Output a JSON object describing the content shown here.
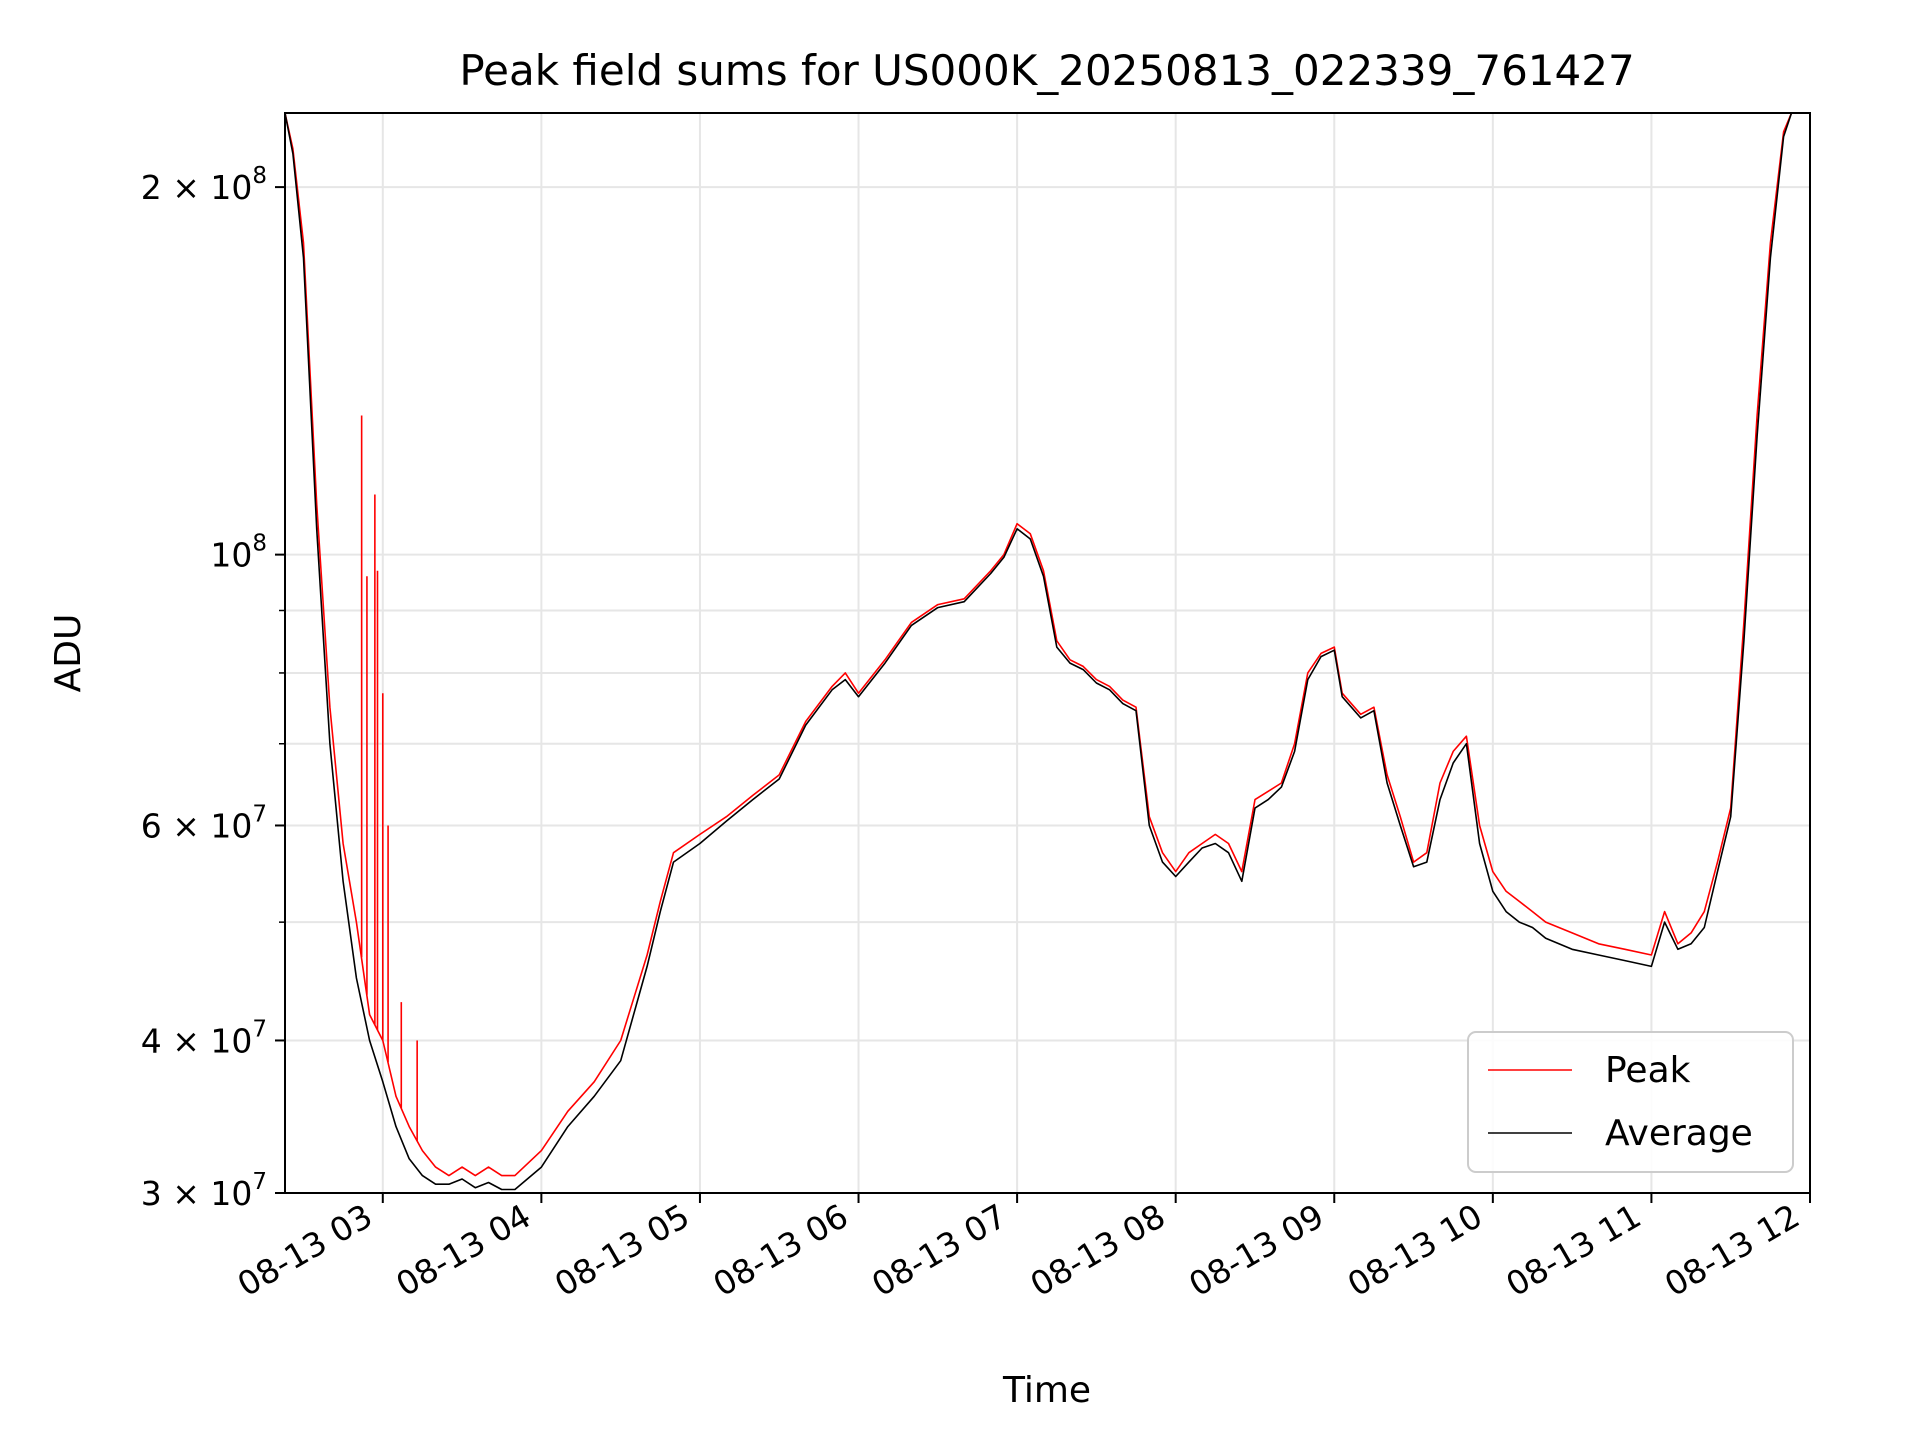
{
  "chart_data": {
    "type": "line",
    "title": "Peak field sums for US000K_20250813_022339_761427",
    "xlabel": "Time",
    "ylabel": "ADU",
    "y_scale": "log",
    "xlim": [
      "2025-08-13 02:23",
      "2025-08-13 12:00"
    ],
    "ylim": [
      30000000,
      230000000
    ],
    "grid": true,
    "legend_position": "lower-right",
    "x_ticks": [
      "08-13 03",
      "08-13 04",
      "08-13 05",
      "08-13 06",
      "08-13 07",
      "08-13 08",
      "08-13 09",
      "08-13 10",
      "08-13 11",
      "08-13 12"
    ],
    "y_ticks": [
      {
        "value": 30000000,
        "mant": "3",
        "exp": "7"
      },
      {
        "value": 40000000,
        "mant": "4",
        "exp": "7"
      },
      {
        "value": 60000000,
        "mant": "6",
        "exp": "7"
      },
      {
        "value": 100000000,
        "mant": "",
        "exp": "8"
      },
      {
        "value": 200000000,
        "mant": "2",
        "exp": "8"
      }
    ],
    "y_minor_ticks": [
      50000000,
      70000000,
      80000000,
      90000000
    ],
    "series": [
      {
        "name": "Peak",
        "color": "#ff0000",
        "x": [
          "02:23",
          "02:26",
          "02:30",
          "02:35",
          "02:40",
          "02:45",
          "02:50",
          "02:55",
          "03:00",
          "03:05",
          "03:10",
          "03:15",
          "03:20",
          "03:25",
          "03:30",
          "03:35",
          "03:40",
          "03:45",
          "03:50",
          "04:00",
          "04:10",
          "04:20",
          "04:30",
          "04:40",
          "04:45",
          "04:50",
          "05:00",
          "05:10",
          "05:20",
          "05:30",
          "05:40",
          "05:50",
          "05:55",
          "06:00",
          "06:10",
          "06:20",
          "06:30",
          "06:40",
          "06:50",
          "06:55",
          "07:00",
          "07:05",
          "07:10",
          "07:15",
          "07:20",
          "07:25",
          "07:30",
          "07:35",
          "07:40",
          "07:45",
          "07:50",
          "07:55",
          "08:00",
          "08:05",
          "08:10",
          "08:15",
          "08:20",
          "08:25",
          "08:30",
          "08:35",
          "08:40",
          "08:45",
          "08:50",
          "08:55",
          "09:00",
          "09:03",
          "09:10",
          "09:15",
          "09:20",
          "09:25",
          "09:30",
          "09:35",
          "09:40",
          "09:45",
          "09:50",
          "09:55",
          "10:00",
          "10:05",
          "10:10",
          "10:15",
          "10:20",
          "10:30",
          "10:40",
          "10:50",
          "11:00",
          "11:05",
          "11:10",
          "11:15",
          "11:20",
          "11:25",
          "11:30",
          "11:35",
          "11:40",
          "11:45",
          "11:50",
          "11:53"
        ],
        "y": [
          230,
          215,
          180,
          110,
          75,
          58,
          50,
          42,
          40,
          36,
          34,
          32.5,
          31.5,
          31,
          31.5,
          31,
          31.5,
          31,
          31,
          32.5,
          35,
          37,
          40,
          47,
          52,
          57,
          59,
          61,
          63.5,
          66,
          73,
          78,
          80,
          77,
          82,
          88,
          91,
          92,
          97,
          100,
          106,
          104,
          97,
          85,
          82,
          81,
          79,
          78,
          76,
          75,
          61,
          57,
          55,
          57,
          58,
          59,
          58,
          55,
          63,
          64,
          65,
          70,
          80,
          83,
          84,
          77,
          74,
          75,
          66,
          61,
          56,
          57,
          65,
          69,
          71,
          60,
          55,
          53,
          52,
          51,
          50,
          49,
          48,
          47.5,
          47,
          51,
          48,
          49,
          51,
          56,
          62,
          88,
          130,
          180,
          222,
          230
        ],
        "spikes": [
          {
            "x": "02:52",
            "y": 130
          },
          {
            "x": "02:54",
            "y": 96
          },
          {
            "x": "02:57",
            "y": 112
          },
          {
            "x": "02:58",
            "y": 97
          },
          {
            "x": "03:00",
            "y": 77
          },
          {
            "x": "03:02",
            "y": 60
          },
          {
            "x": "03:07",
            "y": 43
          },
          {
            "x": "03:13",
            "y": 40
          }
        ]
      },
      {
        "name": "Average",
        "color": "#000000",
        "x": [
          "02:23",
          "02:26",
          "02:30",
          "02:35",
          "02:40",
          "02:45",
          "02:50",
          "02:55",
          "03:00",
          "03:05",
          "03:10",
          "03:15",
          "03:20",
          "03:25",
          "03:30",
          "03:35",
          "03:40",
          "03:45",
          "03:50",
          "04:00",
          "04:10",
          "04:20",
          "04:30",
          "04:40",
          "04:45",
          "04:50",
          "05:00",
          "05:10",
          "05:20",
          "05:30",
          "05:40",
          "05:50",
          "05:55",
          "06:00",
          "06:10",
          "06:20",
          "06:30",
          "06:40",
          "06:50",
          "06:55",
          "07:00",
          "07:05",
          "07:10",
          "07:15",
          "07:20",
          "07:25",
          "07:30",
          "07:35",
          "07:40",
          "07:45",
          "07:50",
          "07:55",
          "08:00",
          "08:05",
          "08:10",
          "08:15",
          "08:20",
          "08:25",
          "08:30",
          "08:35",
          "08:40",
          "08:45",
          "08:50",
          "08:55",
          "09:00",
          "09:03",
          "09:10",
          "09:15",
          "09:20",
          "09:25",
          "09:30",
          "09:35",
          "09:40",
          "09:45",
          "09:50",
          "09:55",
          "10:00",
          "10:05",
          "10:10",
          "10:15",
          "10:20",
          "10:30",
          "10:40",
          "10:50",
          "11:00",
          "11:05",
          "11:10",
          "11:15",
          "11:20",
          "11:25",
          "11:30",
          "11:35",
          "11:40",
          "11:45",
          "11:50",
          "11:53"
        ],
        "y": [
          230,
          213,
          175,
          105,
          70,
          54,
          45,
          40,
          37,
          34,
          32,
          31,
          30.5,
          30.5,
          30.8,
          30.3,
          30.6,
          30.2,
          30.2,
          31.5,
          34,
          36,
          38.5,
          46,
          51,
          56,
          58,
          60.5,
          63,
          65.5,
          72.5,
          77.5,
          79,
          76.5,
          81.5,
          87.5,
          90.5,
          91.5,
          96.5,
          99.5,
          105,
          103,
          96,
          84,
          81.5,
          80.5,
          78.5,
          77.5,
          75.5,
          74.5,
          60,
          56,
          54.5,
          56,
          57.5,
          58,
          57,
          54,
          62,
          63,
          64.5,
          69,
          79,
          82.5,
          83.5,
          76.5,
          73.5,
          74.5,
          65,
          60,
          55.5,
          56,
          63,
          67.5,
          70,
          58,
          53,
          51,
          50,
          49.5,
          48.5,
          47.5,
          47,
          46.5,
          46,
          50,
          47.5,
          48,
          49.5,
          55,
          61,
          85,
          125,
          175,
          220,
          230
        ]
      }
    ]
  }
}
